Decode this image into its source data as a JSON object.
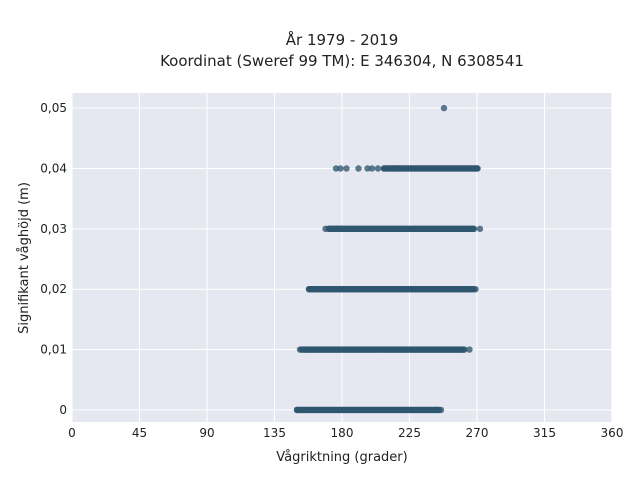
{
  "chart_data": {
    "type": "scatter",
    "title": "År 1979 - 2019",
    "subtitle": "Koordinat (Sweref 99 TM): E 346304, N 6308541",
    "xlabel": "Vågriktning (grader)",
    "ylabel": "Signifikant våghöjd (m)",
    "xlim": [
      0,
      360
    ],
    "ylim": [
      -0.002,
      0.0525
    ],
    "x_ticks": [
      0,
      45,
      90,
      135,
      180,
      225,
      270,
      315,
      360
    ],
    "x_tick_labels": [
      "0",
      "45",
      "90",
      "135",
      "180",
      "225",
      "270",
      "315",
      "360"
    ],
    "y_ticks": [
      0,
      0.01,
      0.02,
      0.03,
      0.04,
      0.05
    ],
    "y_tick_labels": [
      "0",
      "0,01",
      "0,02",
      "0,03",
      "0,04",
      "0,05"
    ],
    "grid": true,
    "marker_color": "#2f5670",
    "background_color": "#e5e8f0",
    "series": [
      {
        "points": [
          {
            "y": 0,
            "x_dense": [
              150,
              245
            ],
            "x_sparse": [
              150,
              152,
              243,
              246
            ]
          },
          {
            "y": 0.01,
            "x_dense": [
              153,
              262
            ],
            "x_sparse": [
              152,
              157,
              259,
              265
            ]
          },
          {
            "y": 0.02,
            "x_dense": [
              158,
              268
            ],
            "x_sparse": [
              158,
              161,
              264,
              269
            ]
          },
          {
            "y": 0.03,
            "x_dense": [
              171,
              268
            ],
            "x_sparse": [
              169,
              172,
              176,
              180,
              268,
              272
            ]
          },
          {
            "y": 0.04,
            "x_dense": [
              208,
              271
            ],
            "x_sparse": [
              176,
              179,
              183,
              191,
              197,
              200,
              204,
              208,
              214,
              217,
              270
            ]
          },
          {
            "y": 0.05,
            "x_dense": [],
            "x_sparse": [
              248
            ]
          }
        ]
      }
    ]
  }
}
